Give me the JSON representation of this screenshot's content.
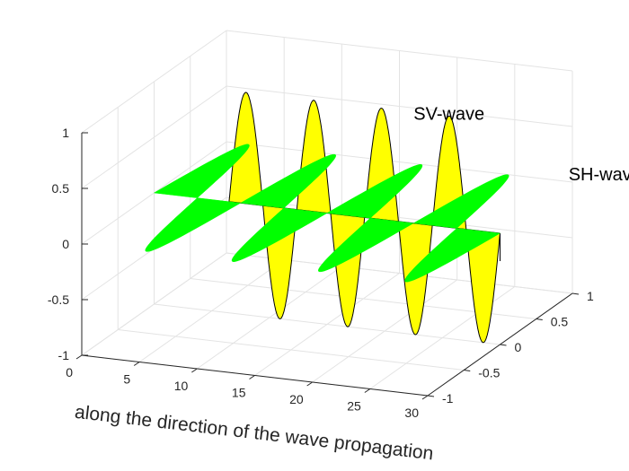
{
  "chart_data": {
    "type": "line",
    "subtype": "3d-waves",
    "title": "",
    "xlabel": "along the direction of the wave propagation",
    "ylabel": "",
    "zlabel": "",
    "xlim": [
      0,
      30
    ],
    "ylim": [
      -1,
      1
    ],
    "zlim": [
      -1,
      1
    ],
    "xticks": [
      0,
      5,
      10,
      15,
      20,
      25,
      30
    ],
    "yticks": [
      -1,
      -0.5,
      0,
      0.5,
      1
    ],
    "zticks": [
      -1,
      -0.5,
      0,
      0.5,
      1
    ],
    "grid": true,
    "series": [
      {
        "name": "SV-wave",
        "plane": "x-z",
        "amplitude": 1,
        "x_start": 6.5,
        "x_end": 30,
        "cycles": 4,
        "color": "#ffff00",
        "edge": "#000000"
      },
      {
        "name": "SH-wave",
        "plane": "x-y",
        "amplitude": 1,
        "x_start": 0,
        "x_end": 30,
        "cycles": 4,
        "color": "#00ff00",
        "edge": "none"
      }
    ],
    "annotations": [
      {
        "text": "SV-wave",
        "near": "SV-wave"
      },
      {
        "text": "SH-wave",
        "near": "SH-wave"
      }
    ]
  }
}
